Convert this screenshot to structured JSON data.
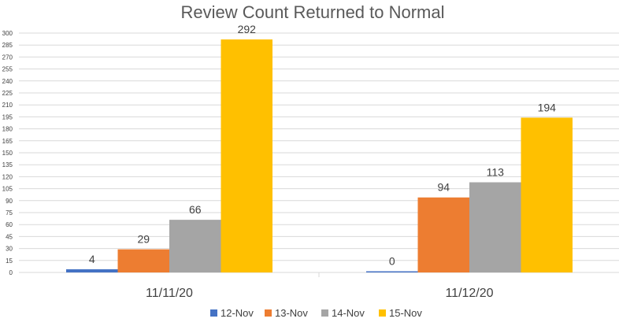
{
  "chart_data": {
    "type": "bar",
    "title": "Review Count Returned to Normal",
    "xlabel": "",
    "ylabel": "",
    "categories": [
      "11/11/20",
      "11/12/20"
    ],
    "series": [
      {
        "name": "12-Nov",
        "values": [
          4,
          0
        ],
        "color": "#4472C4"
      },
      {
        "name": "13-Nov",
        "values": [
          29,
          94
        ],
        "color": "#ED7D31"
      },
      {
        "name": "14-Nov",
        "values": [
          66,
          113
        ],
        "color": "#A5A5A5"
      },
      {
        "name": "15-Nov",
        "values": [
          292,
          194
        ],
        "color": "#FFC000"
      }
    ],
    "ylim": [
      0,
      300
    ],
    "y_ticks": [
      0,
      15,
      30,
      45,
      60,
      75,
      90,
      105,
      120,
      135,
      150,
      165,
      180,
      195,
      210,
      225,
      240,
      255,
      270,
      285,
      300
    ],
    "grid": true,
    "legend_position": "bottom"
  }
}
